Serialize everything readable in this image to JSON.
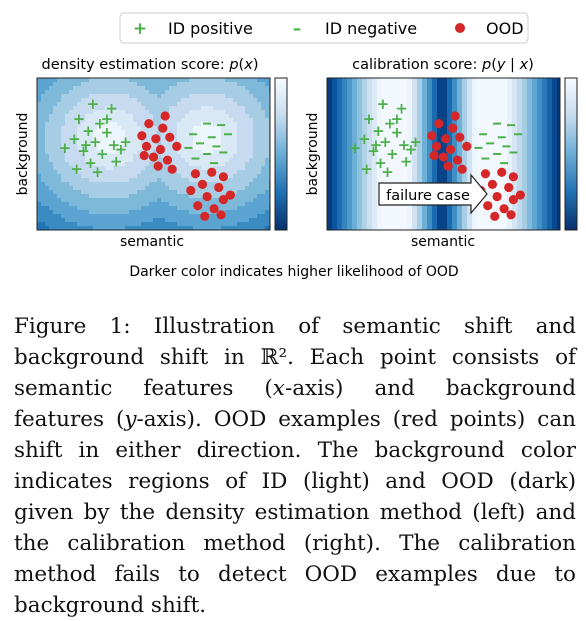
{
  "legend": {
    "positive_label": "ID positive",
    "negative_label": "ID negative",
    "ood_label": "OOD",
    "positive_symbol": "+",
    "negative_symbol": "–"
  },
  "left_panel": {
    "title": "density estimation score: p(x)",
    "xlabel": "semantic",
    "ylabel": "background"
  },
  "right_panel": {
    "title": "calibration score: p(y | x)",
    "xlabel": "semantic",
    "ylabel": "background",
    "annotation": "failure case"
  },
  "bottom_note": "Darker color indicates higher likelihood of OOD",
  "caption": {
    "label": "Figure 1:",
    "text_1": "Illustration of semantic shift and background shift in",
    "math_r2": "ℝ²",
    "text_2": ". Each point consists of semantic features (",
    "x_axis_var": "x",
    "text_3": "-axis) and background features (",
    "y_axis_var": "y",
    "text_4": "-axis). OOD examples (red points) can shift in either direction. The background color indicates regions of ID (light) and OOD (dark) given by the density estimation method (left) and the calibration method (right). The calibration method fails to detect OOD examples due to background shift."
  },
  "colors": {
    "positive": "#4daf4a",
    "negative": "#4daf4a",
    "ood": "#d62728",
    "colormap_light": "#f7fbff",
    "colormap_dark": "#08306b"
  }
}
